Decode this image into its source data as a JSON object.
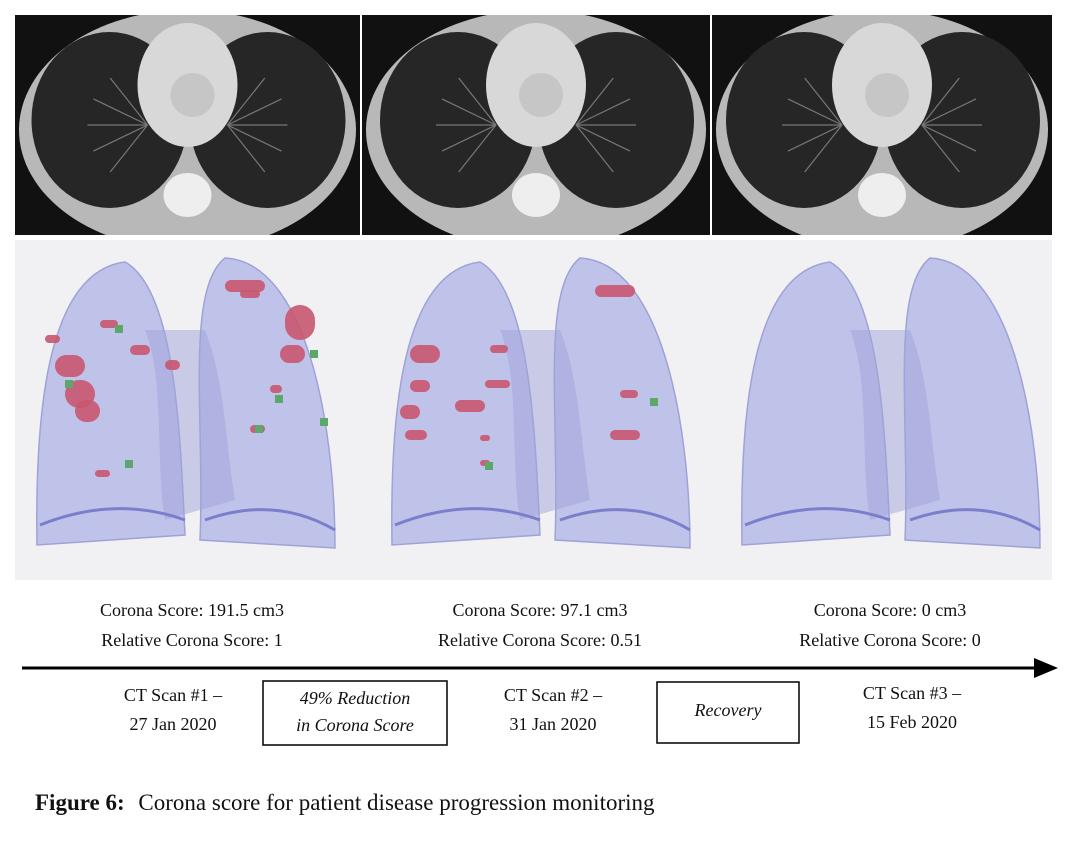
{
  "panels": [
    {
      "score": "Corona Score: 191.5 cm3",
      "relative": "Relative Corona Score: 1",
      "scan": "CT Scan #1 –",
      "date": "27 Jan 2020"
    },
    {
      "score": "Corona Score: 97.1 cm3",
      "relative": "Relative Corona Score: 0.51",
      "scan": "CT Scan #2 –",
      "date": "31 Jan 2020"
    },
    {
      "score": "Corona Score: 0 cm3",
      "relative": "Relative Corona Score: 0",
      "scan": "CT Scan #3 –",
      "date": "15 Feb 2020"
    }
  ],
  "transitions": [
    {
      "line1": "49% Reduction",
      "line2": "in Corona Score"
    },
    {
      "line1": "Recovery"
    }
  ],
  "caption": {
    "label": "Figure 6:",
    "text": "Corona score for patient disease progression monitoring"
  }
}
